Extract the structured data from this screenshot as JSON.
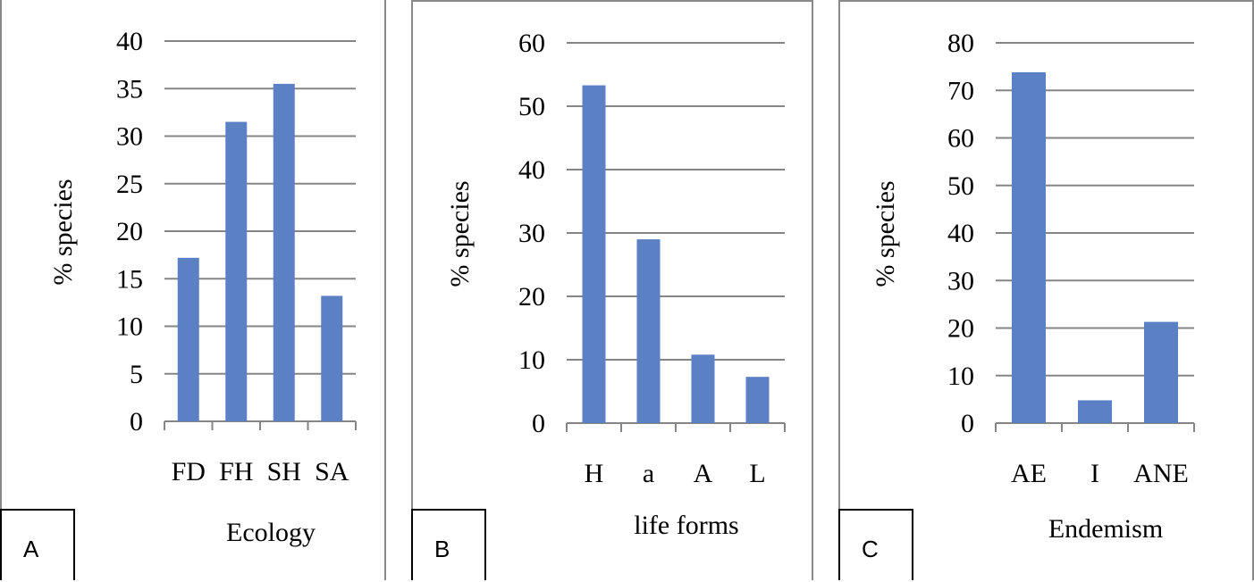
{
  "chart_data": [
    {
      "type": "bar",
      "panel_label": "A",
      "categories": [
        "FD",
        "FH",
        "SH",
        "SA"
      ],
      "values": [
        17.2,
        31.5,
        35.5,
        13.2
      ],
      "ylabel": "% species",
      "xlabel": "Ecology",
      "ylim": [
        0,
        40
      ],
      "yticks": [
        0,
        5,
        10,
        15,
        20,
        25,
        30,
        35,
        40
      ],
      "grid": true,
      "bar_color": "#5b80c3"
    },
    {
      "type": "bar",
      "panel_label": "B",
      "categories": [
        "H",
        "a",
        "A",
        "L"
      ],
      "values": [
        53.3,
        29,
        10.8,
        7.3
      ],
      "ylabel": "% species",
      "xlabel": "life forms",
      "ylim": [
        0,
        60
      ],
      "yticks": [
        0,
        10,
        20,
        30,
        40,
        50,
        60
      ],
      "grid": true,
      "bar_color": "#5b80c3"
    },
    {
      "type": "bar",
      "panel_label": "C",
      "categories": [
        "AE",
        "I",
        "ANE"
      ],
      "values": [
        73.8,
        4.8,
        21.3
      ],
      "ylabel": "% species",
      "xlabel": "Endemism",
      "ylim": [
        0,
        80
      ],
      "yticks": [
        0,
        10,
        20,
        30,
        40,
        50,
        60,
        70,
        80
      ],
      "grid": true,
      "bar_color": "#5b80c3"
    }
  ]
}
